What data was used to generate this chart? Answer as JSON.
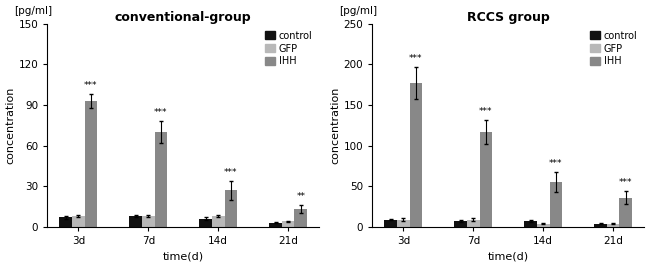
{
  "left": {
    "title": "conventional-group",
    "ylabel_top": "[pg/ml]",
    "ylabel": "concentration",
    "xlabel": "time(d)",
    "ylim": [
      0,
      150
    ],
    "yticks": [
      0,
      30,
      60,
      90,
      120,
      150
    ],
    "categories": [
      "3d",
      "7d",
      "14d",
      "21d"
    ],
    "control": [
      7,
      8,
      6,
      3
    ],
    "gfp": [
      8,
      8,
      8,
      4
    ],
    "ihh": [
      93,
      70,
      27,
      13
    ],
    "ihh_err": [
      5,
      8,
      7,
      3
    ],
    "control_err": [
      1,
      1,
      1,
      0.5
    ],
    "gfp_err": [
      1,
      1,
      1,
      0.5
    ],
    "sig": [
      "***",
      "***",
      "***",
      "**"
    ]
  },
  "right": {
    "title": "RCCS group",
    "ylabel_top": "[pg/ml]",
    "ylabel": "concentration",
    "xlabel": "time(d)",
    "ylim": [
      0,
      250
    ],
    "yticks": [
      0,
      50,
      100,
      150,
      200,
      250
    ],
    "categories": [
      "3d",
      "7d",
      "14d",
      "21d"
    ],
    "control": [
      9,
      7,
      7,
      4
    ],
    "gfp": [
      9,
      9,
      4,
      4
    ],
    "ihh": [
      177,
      117,
      55,
      36
    ],
    "ihh_err": [
      20,
      15,
      12,
      8
    ],
    "control_err": [
      1,
      1,
      1,
      0.5
    ],
    "gfp_err": [
      1.5,
      1.5,
      1,
      0.5
    ],
    "sig": [
      "***",
      "***",
      "***",
      "***"
    ]
  },
  "colors": {
    "control": "#111111",
    "gfp": "#b8b8b8",
    "ihh": "#888888"
  },
  "bar_width": 0.18,
  "legend_labels": [
    "control",
    "GFP",
    "IHH"
  ]
}
